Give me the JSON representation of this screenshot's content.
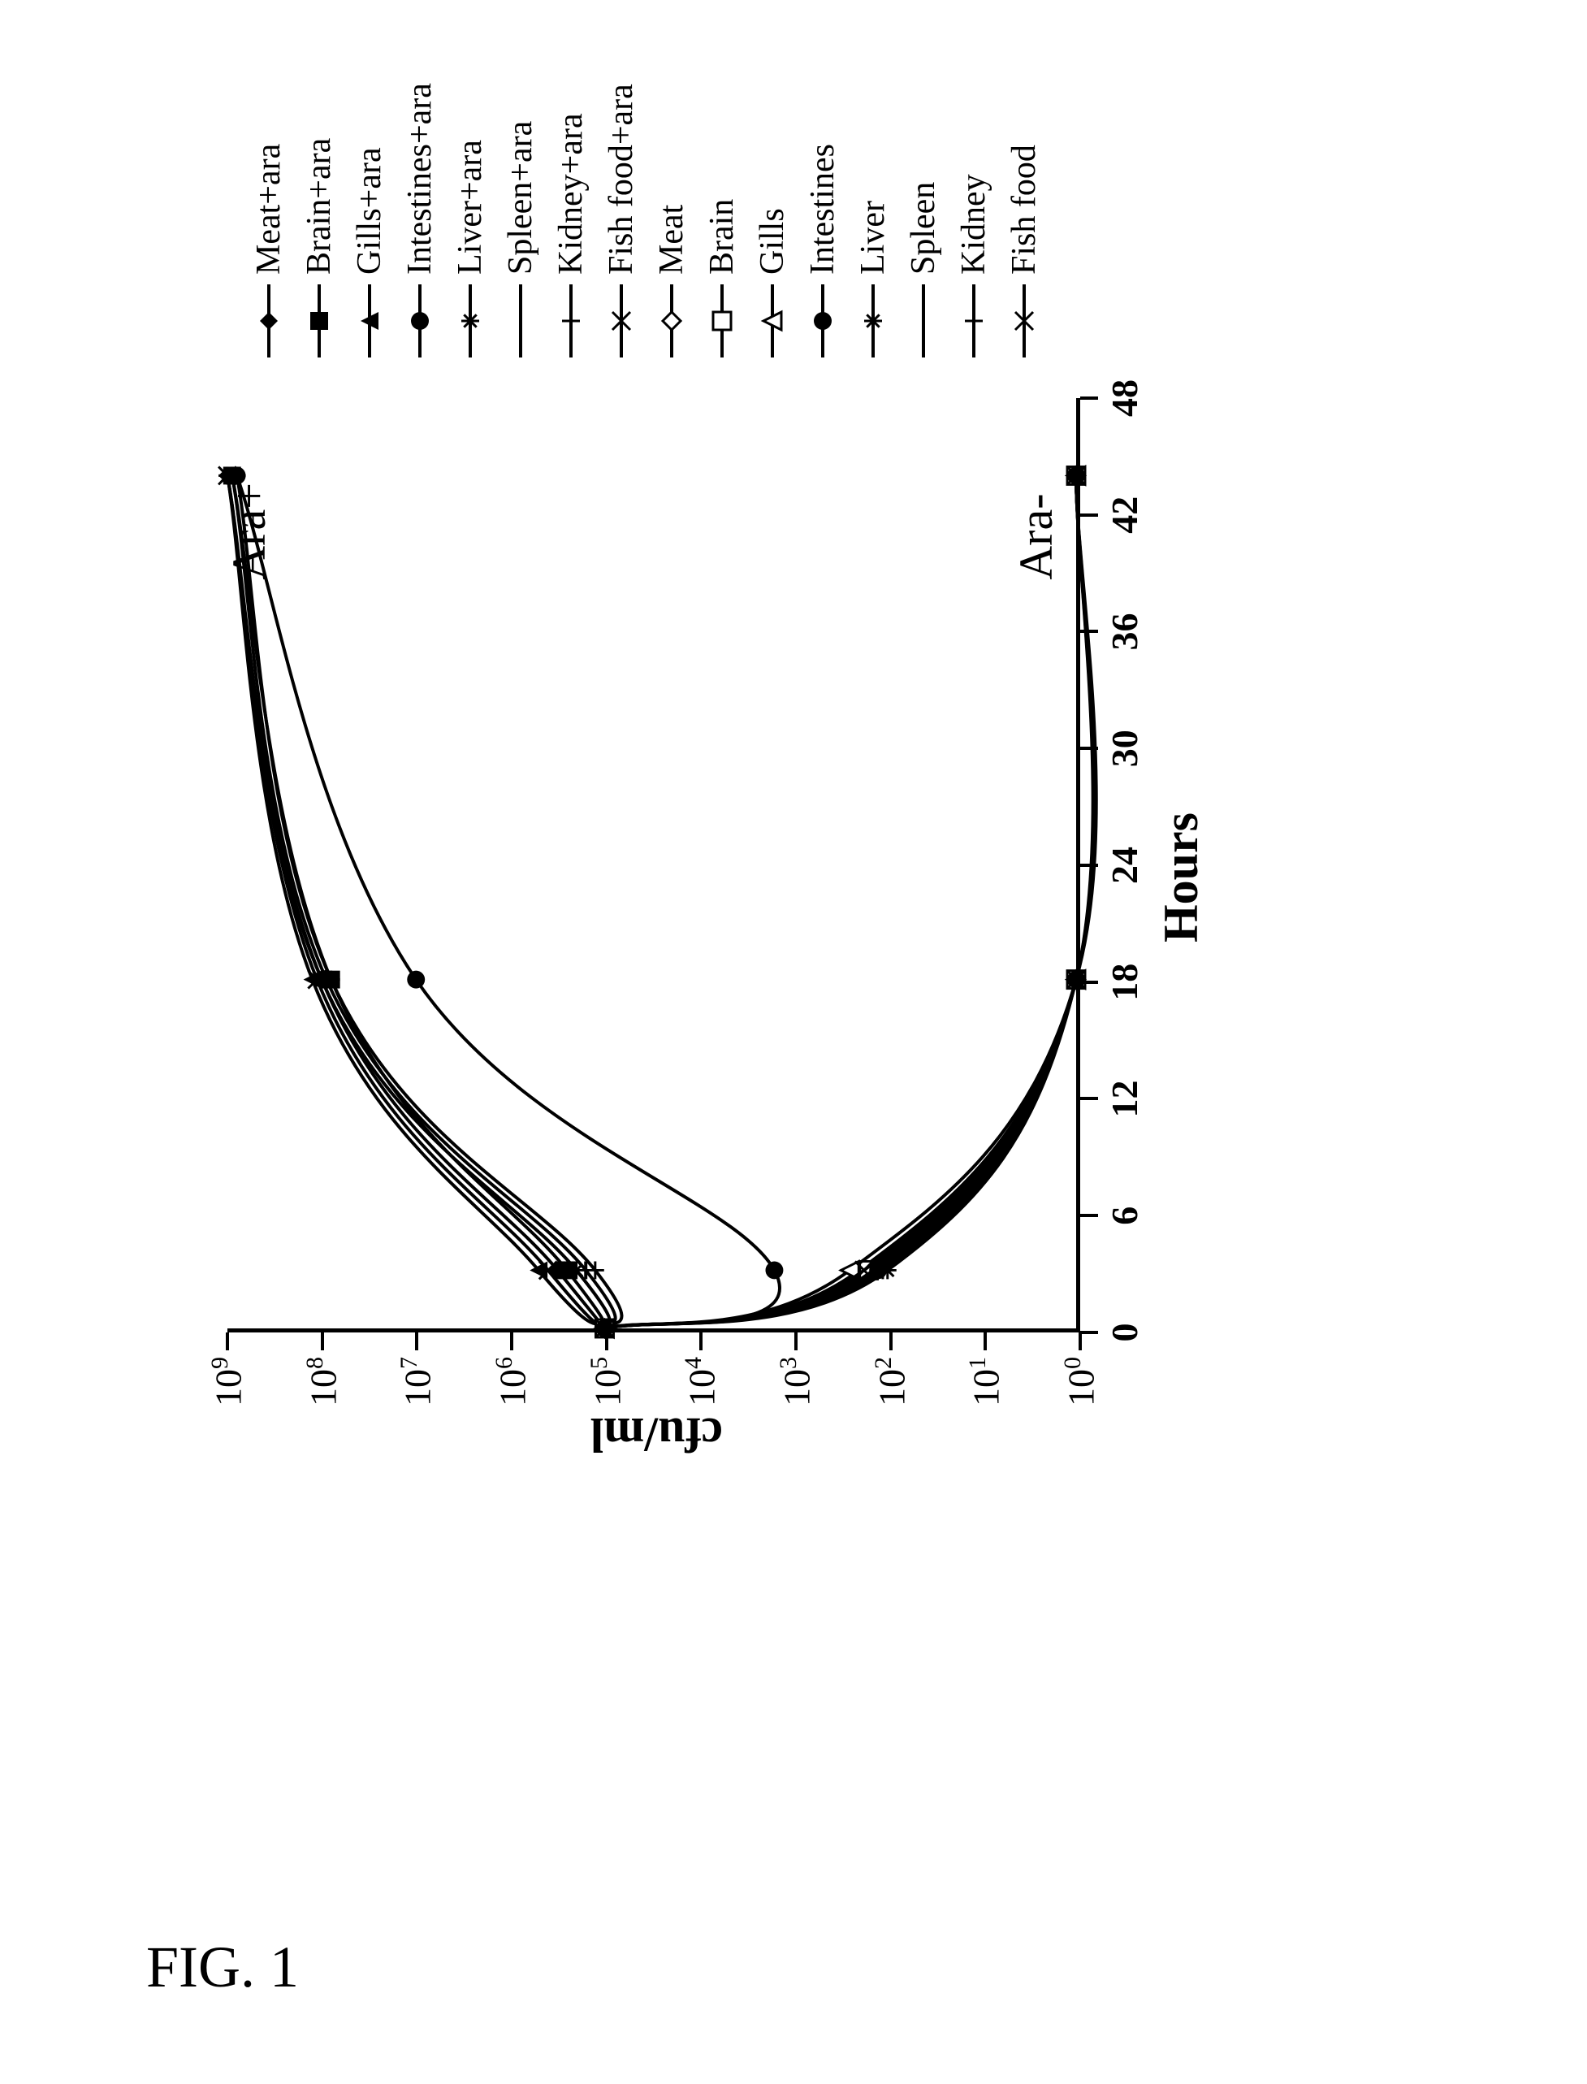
{
  "figure_caption": "FIG. 1",
  "chart": {
    "type": "line",
    "background_color": "#ffffff",
    "axis_color": "#000000",
    "axis_line_width": 5,
    "font_family": "Times New Roman",
    "xlabel": "Hours",
    "ylabel": "cfu/ml",
    "label_fontsize": 60,
    "tick_fontsize": 46,
    "xlim": [
      0,
      48
    ],
    "xtick_step": 6,
    "xticks": [
      0,
      6,
      12,
      18,
      24,
      30,
      36,
      42,
      48
    ],
    "y_scale": "log",
    "ylim_exp": [
      0,
      9
    ],
    "yticks_exp": [
      0,
      1,
      2,
      3,
      4,
      5,
      6,
      7,
      8,
      9
    ],
    "ytick_label_base": "10",
    "line_width": 4,
    "line_color_default": "#000000",
    "marker_size": 22,
    "annotations": [
      {
        "text": "Ara+",
        "x": 42,
        "y_exp": 8.8
      },
      {
        "text": "Ara-",
        "x": 42,
        "y_exp": 0.5
      }
    ],
    "x_points": [
      0,
      3,
      18,
      44
    ],
    "series": [
      {
        "id": "meat_ara",
        "label": "Meat+ara",
        "marker": "diamond-filled",
        "color": "#000000",
        "y_exp": [
          5.0,
          5.5,
          8.0,
          9.0
        ]
      },
      {
        "id": "brain_ara",
        "label": "Brain+ara",
        "marker": "square-filled",
        "color": "#000000",
        "y_exp": [
          5.0,
          5.4,
          7.9,
          8.95
        ]
      },
      {
        "id": "gills_ara",
        "label": "Gills+ara",
        "marker": "triangle-filled",
        "color": "#000000",
        "y_exp": [
          5.0,
          5.7,
          8.1,
          9.0
        ]
      },
      {
        "id": "intestines_ara",
        "label": "Intestines+ara",
        "marker": "circle-filled",
        "color": "#000000",
        "y_exp": [
          5.0,
          3.2,
          7.0,
          8.9
        ]
      },
      {
        "id": "liver_ara",
        "label": "Liver+ara",
        "marker": "asterisk",
        "color": "#000000",
        "y_exp": [
          5.0,
          5.3,
          8.0,
          9.0
        ]
      },
      {
        "id": "spleen_ara",
        "label": "Spleen+ara",
        "marker": "dash",
        "color": "#000000",
        "y_exp": [
          5.0,
          5.2,
          7.95,
          8.95
        ]
      },
      {
        "id": "kidney_ara",
        "label": "Kidney+ara",
        "marker": "plus",
        "color": "#000000",
        "y_exp": [
          5.0,
          5.1,
          7.9,
          8.9
        ]
      },
      {
        "id": "fishfood_ara",
        "label": "Fish food+ara",
        "marker": "x",
        "color": "#000000",
        "y_exp": [
          5.0,
          5.6,
          8.05,
          9.0
        ]
      },
      {
        "id": "meat",
        "label": "Meat",
        "marker": "diamond-open",
        "color": "#000000",
        "y_exp": [
          5.0,
          2.3,
          0.0,
          0.0
        ]
      },
      {
        "id": "brain",
        "label": "Brain",
        "marker": "square-open",
        "color": "#000000",
        "y_exp": [
          5.0,
          2.2,
          0.0,
          0.0
        ]
      },
      {
        "id": "gills",
        "label": "Gills",
        "marker": "triangle-open",
        "color": "#000000",
        "y_exp": [
          5.0,
          2.4,
          0.0,
          0.0
        ]
      },
      {
        "id": "intestines",
        "label": "Intestines",
        "marker": "circle-filled",
        "color": "#000000",
        "y_exp": [
          5.0,
          2.1,
          0.0,
          0.0
        ]
      },
      {
        "id": "liver",
        "label": "Liver",
        "marker": "asterisk",
        "color": "#000000",
        "y_exp": [
          5.0,
          2.0,
          0.0,
          0.0
        ]
      },
      {
        "id": "spleen",
        "label": "Spleen",
        "marker": "dash",
        "color": "#000000",
        "y_exp": [
          5.0,
          2.15,
          0.0,
          0.0
        ]
      },
      {
        "id": "kidney",
        "label": "Kidney",
        "marker": "plus",
        "color": "#000000",
        "y_exp": [
          5.0,
          2.05,
          0.0,
          0.0
        ]
      },
      {
        "id": "fishfood",
        "label": "Fish food",
        "marker": "x",
        "color": "#000000",
        "y_exp": [
          5.0,
          2.25,
          0.0,
          0.0
        ]
      }
    ],
    "legend": {
      "position": "right",
      "fontsize": 42,
      "line_sample_width": 90
    }
  }
}
